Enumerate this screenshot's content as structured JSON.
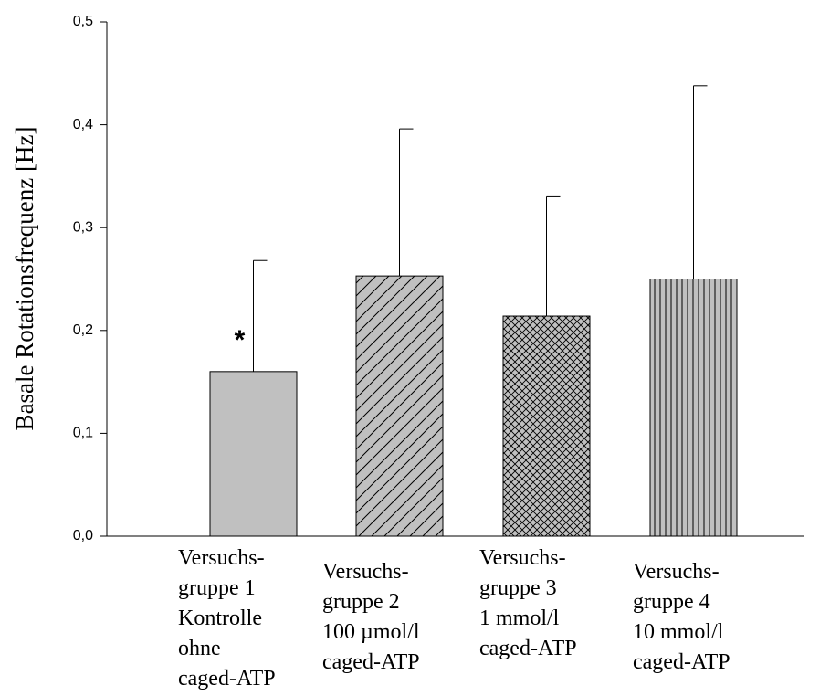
{
  "chart_data": {
    "type": "bar",
    "y_label": "Basale Rotationsfrequenz [Hz]",
    "categories": [
      [
        "Versuchs-",
        "gruppe 1",
        "Kontrolle",
        "ohne",
        "caged-ATP"
      ],
      [
        "Versuchs-",
        "gruppe 2",
        "100 µmol/l",
        "caged-ATP"
      ],
      [
        "Versuchs-",
        "gruppe 3",
        "1 mmol/l",
        "caged-ATP"
      ],
      [
        "Versuchs-",
        "gruppe 4",
        "10 mmol/l",
        "caged-ATP"
      ]
    ],
    "values": [
      0.16,
      0.253,
      0.214,
      0.25
    ],
    "errors": [
      0.108,
      0.143,
      0.116,
      0.188
    ],
    "patterns": [
      "solid",
      "diagonal",
      "crosshatch",
      "vertical"
    ],
    "color": "#c0c0c0",
    "annotations": [
      {
        "text": "*",
        "category": 0
      }
    ],
    "ylim": [
      0,
      0.5
    ],
    "yticks": [
      {
        "value": 0,
        "label": "0,0"
      },
      {
        "value": 0.1,
        "label": "0,1"
      },
      {
        "value": 0.2,
        "label": "0,2"
      },
      {
        "value": 0.3,
        "label": "0,3"
      },
      {
        "value": 0.4,
        "label": "0,4"
      },
      {
        "value": 0.5,
        "label": "0,5"
      }
    ]
  }
}
